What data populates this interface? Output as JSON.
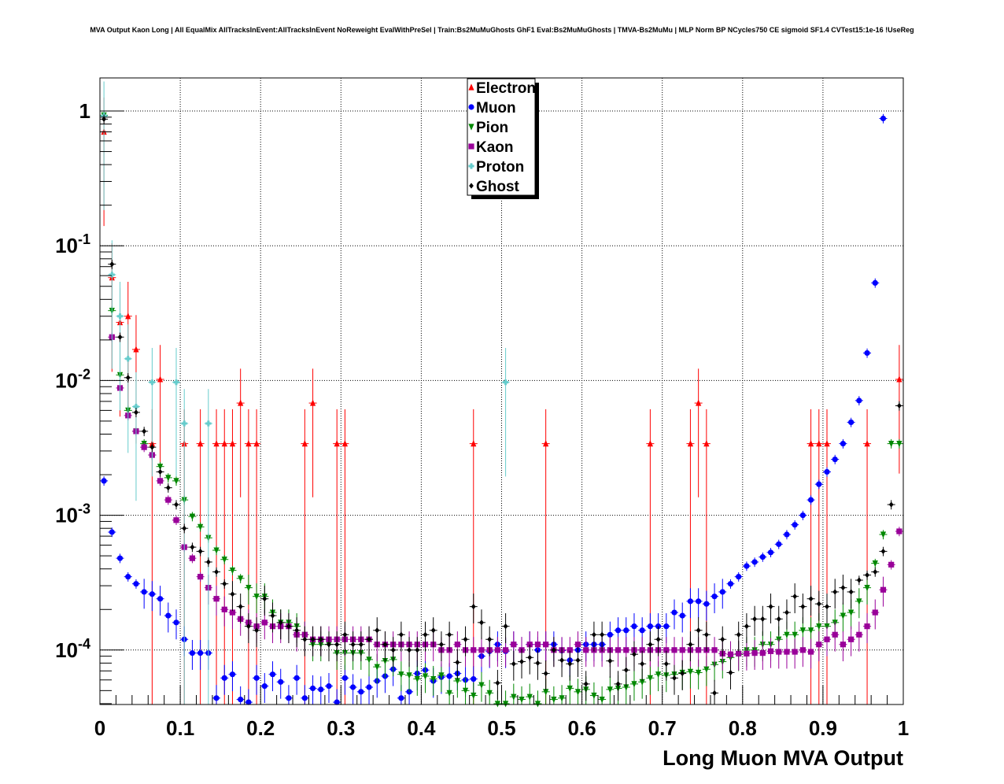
{
  "chart_data": {
    "type": "scatter",
    "title": "MVA Output Kaon Long | All EqualMix AllTracksInEvent:AllTracksInEvent NoReweight EvalWithPreSel | Train:Bs2MuMuGhosts GhF1 Eval:Bs2MuMuGhosts | TMVA-Bs2MuMu | MLP Norm BP NCycles750 CE sigmoid SF1.4 CVTest15:1e-16 !UseReg",
    "xlabel": "Long Muon MVA Output",
    "ylabel": "",
    "xlim": [
      0,
      1
    ],
    "ylim": [
      4e-05,
      1.9
    ],
    "y_scale": "log",
    "grid": true,
    "legend_position": "top-center",
    "x_ticks": [
      "0",
      "0.1",
      "0.2",
      "0.3",
      "0.4",
      "0.5",
      "0.6",
      "0.7",
      "0.8",
      "0.9",
      "1"
    ],
    "y_ticks": [
      {
        "mantissa": "1",
        "exp": ""
      },
      {
        "mantissa": "10",
        "exp": "-1"
      },
      {
        "mantissa": "10",
        "exp": "-2"
      },
      {
        "mantissa": "10",
        "exp": "-3"
      },
      {
        "mantissa": "10",
        "exp": "-4"
      }
    ],
    "series": [
      {
        "name": "Electron",
        "color": "#ff0000",
        "marker": "triangle-up",
        "x": [
          0.005,
          0.015,
          0.025,
          0.035,
          0.045,
          0.065,
          0.075,
          0.105,
          0.125,
          0.145,
          0.155,
          0.165,
          0.175,
          0.185,
          0.195,
          0.255,
          0.265,
          0.295,
          0.305,
          0.465,
          0.555,
          0.685,
          0.735,
          0.745,
          0.755,
          0.885,
          0.895,
          0.905,
          0.955,
          0.995
        ],
        "y": [
          0.7,
          0.058,
          0.027,
          0.03,
          0.017,
          0.0034,
          0.0102,
          0.0034,
          0.0034,
          0.0034,
          0.0034,
          0.0034,
          0.0068,
          0.0034,
          0.0034,
          0.0034,
          0.0068,
          0.0034,
          0.0034,
          0.0034,
          0.0034,
          0.0034,
          0.0034,
          0.0068,
          0.0034,
          0.0034,
          0.0034,
          0.0034,
          0.0034,
          0.0102
        ]
      },
      {
        "name": "Muon",
        "color": "#0000ff",
        "marker": "circle",
        "x": [
          0.005,
          0.015,
          0.025,
          0.035,
          0.045,
          0.055,
          0.065,
          0.075,
          0.085,
          0.095,
          0.105,
          0.115,
          0.125,
          0.135,
          0.145,
          0.155,
          0.165,
          0.175,
          0.185,
          0.195,
          0.205,
          0.215,
          0.225,
          0.235,
          0.245,
          0.255,
          0.265,
          0.275,
          0.285,
          0.295,
          0.305,
          0.315,
          0.325,
          0.335,
          0.345,
          0.355,
          0.365,
          0.375,
          0.385,
          0.395,
          0.405,
          0.415,
          0.425,
          0.435,
          0.445,
          0.455,
          0.465,
          0.475,
          0.485,
          0.495,
          0.505,
          0.515,
          0.525,
          0.535,
          0.545,
          0.555,
          0.565,
          0.575,
          0.585,
          0.595,
          0.605,
          0.615,
          0.625,
          0.635,
          0.645,
          0.655,
          0.665,
          0.675,
          0.685,
          0.695,
          0.705,
          0.715,
          0.725,
          0.735,
          0.745,
          0.755,
          0.765,
          0.775,
          0.785,
          0.795,
          0.805,
          0.815,
          0.825,
          0.835,
          0.845,
          0.855,
          0.865,
          0.875,
          0.885,
          0.895,
          0.905,
          0.915,
          0.925,
          0.935,
          0.945,
          0.955,
          0.965,
          0.975,
          0.985,
          0.995
        ],
        "y": [
          0.0018,
          0.00075,
          0.00048,
          0.00035,
          0.00031,
          0.00027,
          0.00026,
          0.00024,
          0.00018,
          0.00016,
          0.00012,
          9.5e-05,
          9.5e-05,
          9.5e-05,
          4.4e-05,
          6.2e-05,
          6.6e-05,
          4.3e-05,
          4.1e-05,
          6.2e-05,
          5.4e-05,
          6.6e-05,
          5.8e-05,
          4.4e-05,
          6.2e-05,
          4.4e-05,
          5.2e-05,
          5.1e-05,
          5.4e-05,
          4.1e-05,
          6.2e-05,
          5.3e-05,
          4.9e-05,
          5.3e-05,
          5.9e-05,
          6.4e-05,
          7.2e-05,
          4.4e-05,
          4.9e-05,
          6.7e-05,
          7.1e-05,
          5.9e-05,
          6.3e-05,
          6.4e-05,
          6.7e-05,
          6e-05,
          6.1e-05,
          9e-05,
          9.8e-05,
          0.00011,
          9.8e-05,
          0.00011,
          0.0001,
          0.00011,
          0.0001,
          0.00011,
          0.00011,
          9.9e-05,
          8.4e-05,
          0.0001,
          0.00011,
          0.00011,
          0.00011,
          0.00013,
          0.00014,
          0.00014,
          0.00015,
          0.00014,
          0.00015,
          0.00015,
          0.00015,
          0.00019,
          0.00018,
          0.00023,
          0.00023,
          0.00022,
          0.00025,
          0.00027,
          0.00031,
          0.00035,
          0.00042,
          0.00045,
          0.00049,
          0.00053,
          0.00061,
          0.00072,
          0.00085,
          0.001,
          0.0013,
          0.0017,
          0.0021,
          0.0026,
          0.0034,
          0.0049,
          0.0071,
          0.016,
          0.053,
          0.88,
          0.0,
          0.0
        ]
      },
      {
        "name": "Pion",
        "color": "#008800",
        "marker": "triangle-down",
        "x": [
          0.005,
          0.015,
          0.025,
          0.035,
          0.045,
          0.055,
          0.065,
          0.075,
          0.085,
          0.095,
          0.105,
          0.115,
          0.125,
          0.135,
          0.145,
          0.155,
          0.165,
          0.175,
          0.185,
          0.195,
          0.205,
          0.215,
          0.225,
          0.235,
          0.245,
          0.255,
          0.265,
          0.275,
          0.285,
          0.295,
          0.305,
          0.315,
          0.325,
          0.335,
          0.345,
          0.355,
          0.365,
          0.375,
          0.385,
          0.395,
          0.405,
          0.415,
          0.425,
          0.435,
          0.445,
          0.455,
          0.465,
          0.475,
          0.485,
          0.495,
          0.505,
          0.515,
          0.525,
          0.535,
          0.545,
          0.555,
          0.565,
          0.575,
          0.585,
          0.595,
          0.605,
          0.615,
          0.625,
          0.635,
          0.645,
          0.655,
          0.665,
          0.675,
          0.685,
          0.695,
          0.705,
          0.715,
          0.725,
          0.735,
          0.745,
          0.755,
          0.765,
          0.775,
          0.785,
          0.795,
          0.805,
          0.815,
          0.825,
          0.835,
          0.845,
          0.855,
          0.865,
          0.875,
          0.885,
          0.895,
          0.905,
          0.915,
          0.925,
          0.935,
          0.945,
          0.955,
          0.965,
          0.975,
          0.985,
          0.995
        ],
        "y": [
          0.93,
          0.033,
          0.011,
          0.006,
          0.0042,
          0.0034,
          0.0028,
          0.0023,
          0.0019,
          0.0018,
          0.0013,
          0.00098,
          0.00082,
          0.00068,
          0.00055,
          0.00047,
          0.00039,
          0.00034,
          0.00029,
          0.00025,
          0.00025,
          0.00019,
          0.00016,
          0.00016,
          0.00015,
          0.00013,
          0.00011,
          0.00011,
          0.00011,
          9.5e-05,
          9.5e-05,
          9.5e-05,
          9.5e-05,
          8.5e-05,
          7.5e-05,
          8.3e-05,
          8.5e-05,
          6.6e-05,
          6.5e-05,
          6.1e-05,
          6.4e-05,
          6.1e-05,
          6.5e-05,
          4.8e-05,
          5.9e-05,
          5e-05,
          4.6e-05,
          5.5e-05,
          4.8e-05,
          4e-05,
          4e-05,
          4.5e-05,
          4.3e-05,
          4.5e-05,
          4e-05,
          4.9e-05,
          4.3e-05,
          4.4e-05,
          5.2e-05,
          4.9e-05,
          5.1e-05,
          4.6e-05,
          4.3e-05,
          5.1e-05,
          5.2e-05,
          5.3e-05,
          5.6e-05,
          5.8e-05,
          6.2e-05,
          6.6e-05,
          6.5e-05,
          6.6e-05,
          6.8e-05,
          6.9e-05,
          6.8e-05,
          7.2e-05,
          7.8e-05,
          8.2e-05,
          8.8e-05,
          9.3e-05,
          0.0001,
          0.0001,
          0.00011,
          0.00011,
          0.00012,
          0.00013,
          0.00013,
          0.00014,
          0.00014,
          0.00015,
          0.00015,
          0.00016,
          0.00018,
          0.00019,
          0.00023,
          0.00029,
          0.00044,
          0.00072,
          0.0034,
          0.0034
        ]
      },
      {
        "name": "Kaon",
        "color": "#990099",
        "marker": "square",
        "x": [
          0.015,
          0.025,
          0.035,
          0.045,
          0.055,
          0.065,
          0.075,
          0.085,
          0.095,
          0.105,
          0.115,
          0.125,
          0.135,
          0.145,
          0.155,
          0.165,
          0.175,
          0.185,
          0.195,
          0.205,
          0.215,
          0.225,
          0.235,
          0.245,
          0.255,
          0.265,
          0.275,
          0.285,
          0.295,
          0.305,
          0.315,
          0.325,
          0.335,
          0.345,
          0.355,
          0.365,
          0.375,
          0.385,
          0.395,
          0.405,
          0.415,
          0.425,
          0.435,
          0.445,
          0.455,
          0.465,
          0.475,
          0.485,
          0.495,
          0.505,
          0.515,
          0.525,
          0.535,
          0.545,
          0.555,
          0.565,
          0.575,
          0.585,
          0.595,
          0.605,
          0.615,
          0.625,
          0.635,
          0.645,
          0.655,
          0.665,
          0.675,
          0.685,
          0.695,
          0.705,
          0.715,
          0.725,
          0.735,
          0.745,
          0.755,
          0.765,
          0.775,
          0.785,
          0.795,
          0.805,
          0.815,
          0.825,
          0.835,
          0.845,
          0.855,
          0.865,
          0.875,
          0.885,
          0.895,
          0.905,
          0.915,
          0.925,
          0.935,
          0.945,
          0.955,
          0.965,
          0.975,
          0.985,
          0.995
        ],
        "y": [
          0.021,
          0.0088,
          0.0055,
          0.0042,
          0.0032,
          0.0028,
          0.0018,
          0.0013,
          0.00092,
          0.00058,
          0.00048,
          0.00035,
          0.00029,
          0.00024,
          0.0002,
          0.00019,
          0.00017,
          0.00016,
          0.00015,
          0.00016,
          0.00015,
          0.00015,
          0.00015,
          0.00013,
          0.00013,
          0.00012,
          0.00012,
          0.00012,
          0.00012,
          0.00012,
          0.00012,
          0.00012,
          0.00012,
          0.00011,
          0.00011,
          0.00011,
          0.00011,
          0.00011,
          0.00011,
          0.00011,
          0.00011,
          0.0001,
          0.0001,
          0.00011,
          0.0001,
          0.0001,
          0.0001,
          0.0001,
          0.0001,
          0.0001,
          0.00011,
          0.0001,
          0.00011,
          0.00011,
          0.00011,
          0.0001,
          0.0001,
          0.0001,
          0.00011,
          0.0001,
          0.0001,
          0.0001,
          0.0001,
          0.0001,
          0.0001,
          0.0001,
          0.0001,
          0.0001,
          0.0001,
          0.0001,
          0.0001,
          0.0001,
          0.0001,
          0.0001,
          0.0001,
          0.0001,
          9.4e-05,
          9.3e-05,
          9.4e-05,
          9.4e-05,
          9.5e-05,
          9.5e-05,
          9.8e-05,
          9.7e-05,
          9.7e-05,
          9.7e-05,
          0.0001,
          9.7e-05,
          0.00011,
          0.00012,
          0.00013,
          0.00011,
          0.00012,
          0.00013,
          0.00015,
          0.00019,
          0.00028,
          0.00043,
          0.00076
        ]
      },
      {
        "name": "Proton",
        "color": "#66cccc",
        "marker": "cross",
        "x": [
          0.005,
          0.015,
          0.025,
          0.035,
          0.045,
          0.065,
          0.095,
          0.105,
          0.135,
          0.505
        ],
        "y": [
          0.92,
          0.061,
          0.03,
          0.0145,
          0.0064,
          0.0097,
          0.0097,
          0.0048,
          0.0048,
          0.0097
        ]
      },
      {
        "name": "Ghost",
        "color": "#000000",
        "marker": "diamond",
        "x": [
          0.005,
          0.015,
          0.025,
          0.035,
          0.045,
          0.055,
          0.065,
          0.075,
          0.085,
          0.095,
          0.105,
          0.115,
          0.125,
          0.135,
          0.145,
          0.155,
          0.165,
          0.175,
          0.185,
          0.195,
          0.205,
          0.215,
          0.225,
          0.235,
          0.245,
          0.255,
          0.265,
          0.275,
          0.285,
          0.295,
          0.305,
          0.315,
          0.325,
          0.335,
          0.345,
          0.355,
          0.365,
          0.375,
          0.385,
          0.395,
          0.405,
          0.415,
          0.425,
          0.435,
          0.445,
          0.455,
          0.465,
          0.475,
          0.485,
          0.495,
          0.505,
          0.515,
          0.525,
          0.535,
          0.545,
          0.555,
          0.565,
          0.575,
          0.585,
          0.595,
          0.605,
          0.615,
          0.625,
          0.635,
          0.645,
          0.655,
          0.665,
          0.675,
          0.685,
          0.695,
          0.705,
          0.715,
          0.725,
          0.735,
          0.745,
          0.755,
          0.765,
          0.775,
          0.785,
          0.795,
          0.805,
          0.815,
          0.825,
          0.835,
          0.845,
          0.855,
          0.865,
          0.875,
          0.885,
          0.895,
          0.905,
          0.915,
          0.925,
          0.935,
          0.945,
          0.955,
          0.965,
          0.975,
          0.985,
          0.995
        ],
        "y": [
          0.87,
          0.073,
          0.021,
          0.0105,
          0.0058,
          0.0042,
          0.0032,
          0.0021,
          0.0016,
          0.0012,
          0.0008,
          0.00058,
          0.00054,
          0.00045,
          0.00038,
          0.00031,
          0.00026,
          0.00021,
          0.00015,
          0.00014,
          0.00024,
          0.00018,
          0.00016,
          0.00015,
          0.00014,
          0.00012,
          0.00012,
          0.00012,
          0.00011,
          0.00011,
          0.00013,
          0.00011,
          0.00011,
          0.00012,
          0.00014,
          0.00011,
          0.0001,
          0.00013,
          0.0001,
          0.0001,
          0.00013,
          0.00014,
          0.00011,
          0.00013,
          8.1e-05,
          0.00012,
          0.00021,
          0.00016,
          0.00012,
          5.7e-05,
          0.00015,
          7.9e-05,
          8.2e-05,
          8.8e-05,
          8e-05,
          6.7e-05,
          0.0001,
          8.4e-05,
          7.9e-05,
          8.4e-05,
          5.6e-05,
          0.00013,
          0.00013,
          8.3e-05,
          5.6e-05,
          7.1e-05,
          9.3e-05,
          7.9e-05,
          0.00011,
          0.00012,
          7.9e-05,
          6.2e-05,
          6.7e-05,
          0.00011,
          0.00014,
          0.00013,
          4.8e-05,
          0.00012,
          6.8e-05,
          0.00013,
          0.00015,
          0.00017,
          0.00017,
          0.00021,
          0.00017,
          0.00019,
          0.00025,
          0.00021,
          0.00024,
          0.00022,
          0.00021,
          0.00027,
          0.00029,
          0.00027,
          0.00033,
          0.00036,
          0.00038,
          0.00054,
          0.0012,
          0.0065
        ]
      }
    ]
  }
}
